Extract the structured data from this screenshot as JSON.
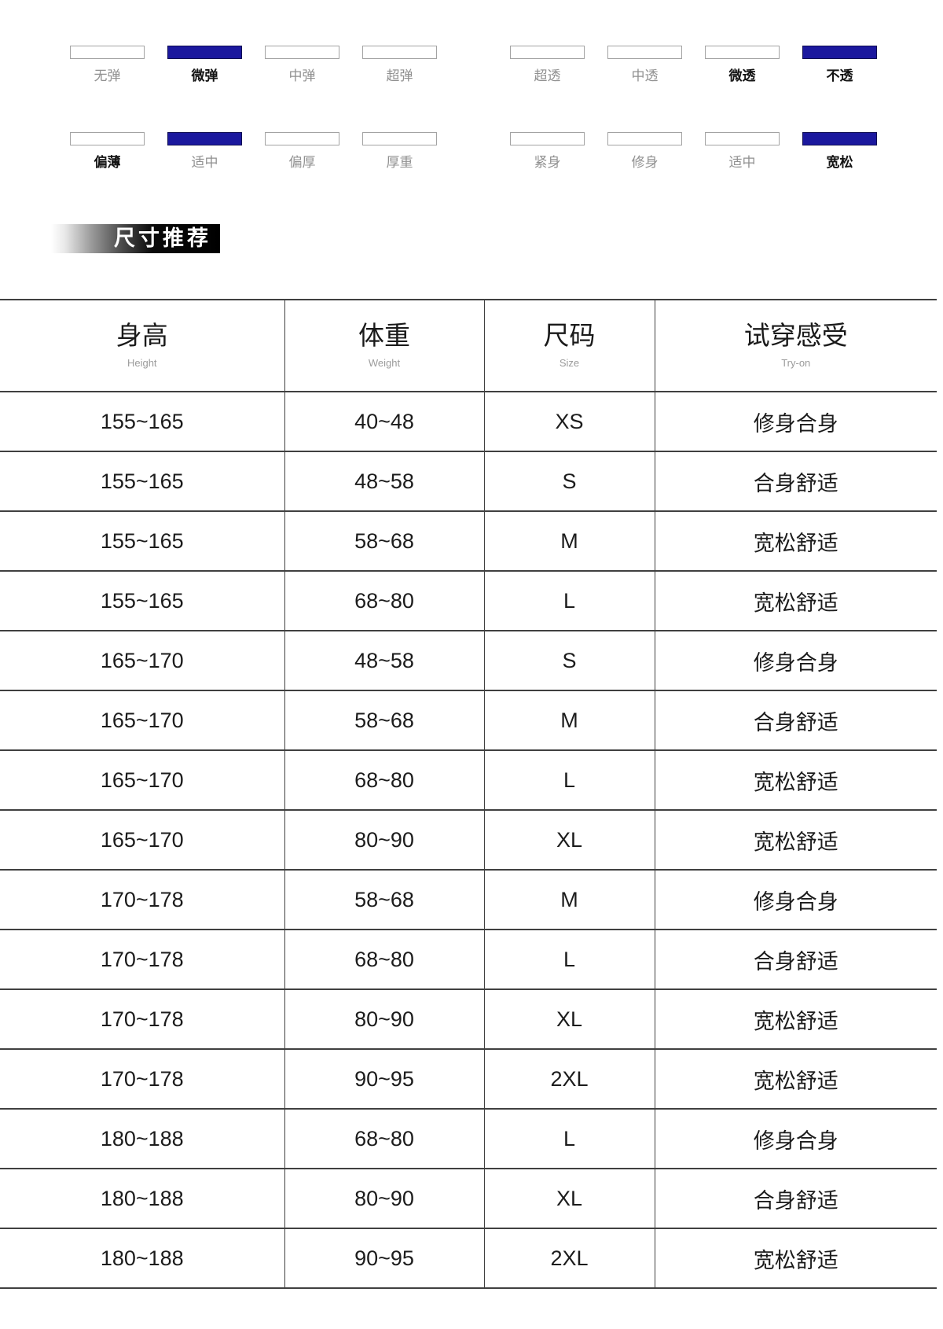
{
  "colors": {
    "accent_blue": "#1b189e",
    "box_border_gray": "#a3a3a3",
    "table_line": "#404040",
    "label_gray": "#909090",
    "label_dark": "#141414",
    "banner_text": "#ffffff"
  },
  "features": {
    "groups": [
      {
        "name": "elasticity",
        "items": [
          {
            "label": "无弹",
            "blue": false,
            "bold": false
          },
          {
            "label": "微弹",
            "blue": true,
            "bold": true
          },
          {
            "label": "中弹",
            "blue": false,
            "bold": false
          },
          {
            "label": "超弹",
            "blue": false,
            "bold": false
          }
        ]
      },
      {
        "name": "transparency",
        "items": [
          {
            "label": "超透",
            "blue": false,
            "bold": false
          },
          {
            "label": "中透",
            "blue": false,
            "bold": false
          },
          {
            "label": "微透",
            "blue": false,
            "bold": true
          },
          {
            "label": "不透",
            "blue": true,
            "bold": true
          }
        ]
      },
      {
        "name": "thickness",
        "items": [
          {
            "label": "偏薄",
            "blue": false,
            "bold": true
          },
          {
            "label": "适中",
            "blue": true,
            "bold": false
          },
          {
            "label": "偏厚",
            "blue": false,
            "bold": false
          },
          {
            "label": "厚重",
            "blue": false,
            "bold": false
          }
        ]
      },
      {
        "name": "fit",
        "items": [
          {
            "label": "紧身",
            "blue": false,
            "bold": false
          },
          {
            "label": "修身",
            "blue": false,
            "bold": false
          },
          {
            "label": "适中",
            "blue": false,
            "bold": false
          },
          {
            "label": "宽松",
            "blue": true,
            "bold": true
          }
        ]
      }
    ]
  },
  "section_header": {
    "title": "尺寸推荐"
  },
  "table": {
    "columns": [
      {
        "title": "身高",
        "subtitle": "Height"
      },
      {
        "title": "体重",
        "subtitle": "Weight"
      },
      {
        "title": "尺码",
        "subtitle": "Size"
      },
      {
        "title": "试穿感受",
        "subtitle": "Try-on"
      }
    ],
    "rows": [
      {
        "height": "155~165",
        "weight": "40~48",
        "size": "XS",
        "tryon": "修身合身"
      },
      {
        "height": "155~165",
        "weight": "48~58",
        "size": "S",
        "tryon": "合身舒适"
      },
      {
        "height": "155~165",
        "weight": "58~68",
        "size": "M",
        "tryon": "宽松舒适"
      },
      {
        "height": "155~165",
        "weight": "68~80",
        "size": "L",
        "tryon": "宽松舒适"
      },
      {
        "height": "165~170",
        "weight": "48~58",
        "size": "S",
        "tryon": "修身合身"
      },
      {
        "height": "165~170",
        "weight": "58~68",
        "size": "M",
        "tryon": "合身舒适"
      },
      {
        "height": "165~170",
        "weight": "68~80",
        "size": "L",
        "tryon": "宽松舒适"
      },
      {
        "height": "165~170",
        "weight": "80~90",
        "size": "XL",
        "tryon": "宽松舒适"
      },
      {
        "height": "170~178",
        "weight": "58~68",
        "size": "M",
        "tryon": "修身合身"
      },
      {
        "height": "170~178",
        "weight": "68~80",
        "size": "L",
        "tryon": "合身舒适"
      },
      {
        "height": "170~178",
        "weight": "80~90",
        "size": "XL",
        "tryon": "宽松舒适"
      },
      {
        "height": "170~178",
        "weight": "90~95",
        "size": "2XL",
        "tryon": "宽松舒适"
      },
      {
        "height": "180~188",
        "weight": "68~80",
        "size": "L",
        "tryon": "修身合身"
      },
      {
        "height": "180~188",
        "weight": "80~90",
        "size": "XL",
        "tryon": "合身舒适"
      },
      {
        "height": "180~188",
        "weight": "90~95",
        "size": "2XL",
        "tryon": "宽松舒适"
      }
    ]
  }
}
